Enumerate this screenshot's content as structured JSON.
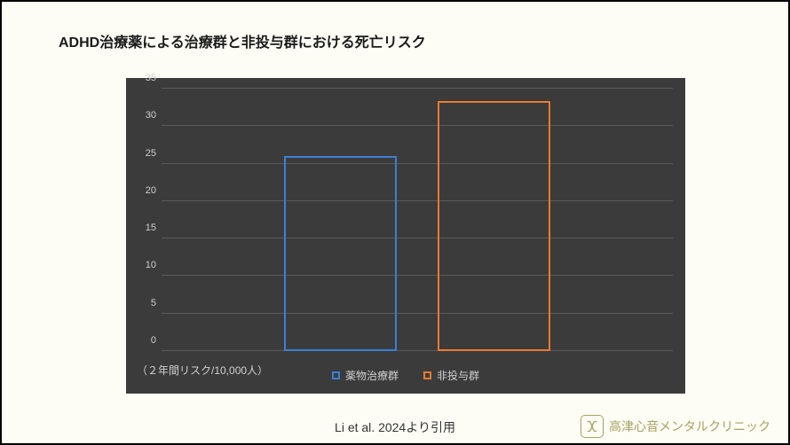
{
  "title": "ADHD治療薬による治療群と非投与群における死亡リスク",
  "chart": {
    "type": "bar",
    "background_color": "#3b3b3b",
    "grid_color": "#5a5a5a",
    "tick_color": "#d0d0d0",
    "ylim": [
      0,
      35
    ],
    "ytick_step": 5,
    "yticks": [
      0,
      5,
      10,
      15,
      20,
      25,
      30,
      35
    ],
    "bar_width_pct": 22,
    "bar_gap_pct": 8,
    "bar_border_width": 2.5,
    "series": [
      {
        "label": "薬物治療群",
        "value": 26.0,
        "color": "#3a7fd5"
      },
      {
        "label": "非投与群",
        "value": 33.3,
        "color": "#e87b2f"
      }
    ],
    "legend_fontsize": 12,
    "tick_fontsize": 11
  },
  "note": "（２年間リスク/10,000人）",
  "citation": "Li et al. 2024より引用",
  "clinic": "高津心音メンタルクリニック",
  "title_fontsize": 16
}
